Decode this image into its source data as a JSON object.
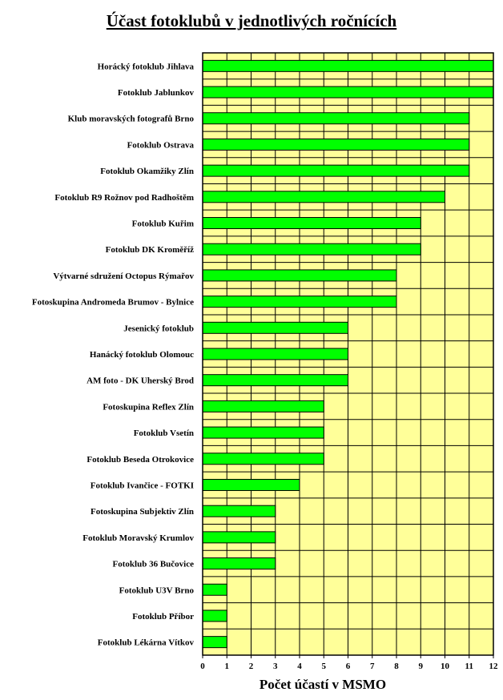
{
  "chart_data": {
    "type": "bar",
    "orientation": "horizontal",
    "title": "Účast fotoklubů v jednotlivých ročnících",
    "xlabel": "Počet účastí v MSMO",
    "ylabel": "",
    "xlim": [
      0,
      12
    ],
    "xticks": [
      0,
      1,
      2,
      3,
      4,
      5,
      6,
      7,
      8,
      9,
      10,
      11,
      12
    ],
    "grid": true,
    "bar_color": "#00ff00",
    "plot_background": "#ffff99",
    "categories": [
      "Horácký fotoklub Jihlava",
      "Fotoklub Jablunkov",
      "Klub moravských fotografů Brno",
      "Fotoklub Ostrava",
      "Fotoklub Okamžiky Zlín",
      "Fotoklub R9 Rožnov pod Radhoštěm",
      "Fotoklub Kuřim",
      "Fotoklub DK Kroměříž",
      "Výtvarné sdružení Octopus Rýmařov",
      "Fotoskupina Andromeda Brumov - Bylnice",
      "Jesenický fotoklub",
      "Hanácký fotoklub Olomouc",
      "AM foto - DK Uherský Brod",
      "Fotoskupina Reflex Zlín",
      "Fotoklub Vsetín",
      "Fotoklub Beseda Otrokovice",
      "Fotoklub Ivančice - FOTKI",
      "Fotoskupina Subjektiv Zlín",
      "Fotoklub Moravský Krumlov",
      "Fotoklub 36 Bučovice",
      "Fotoklub U3V Brno",
      "Fotoklub Příbor",
      "Fotoklub Lékárna Vítkov"
    ],
    "values": [
      12,
      12,
      11,
      11,
      11,
      10,
      9,
      9,
      8,
      8,
      6,
      6,
      6,
      5,
      5,
      5,
      4,
      3,
      3,
      3,
      1,
      1,
      1
    ]
  }
}
